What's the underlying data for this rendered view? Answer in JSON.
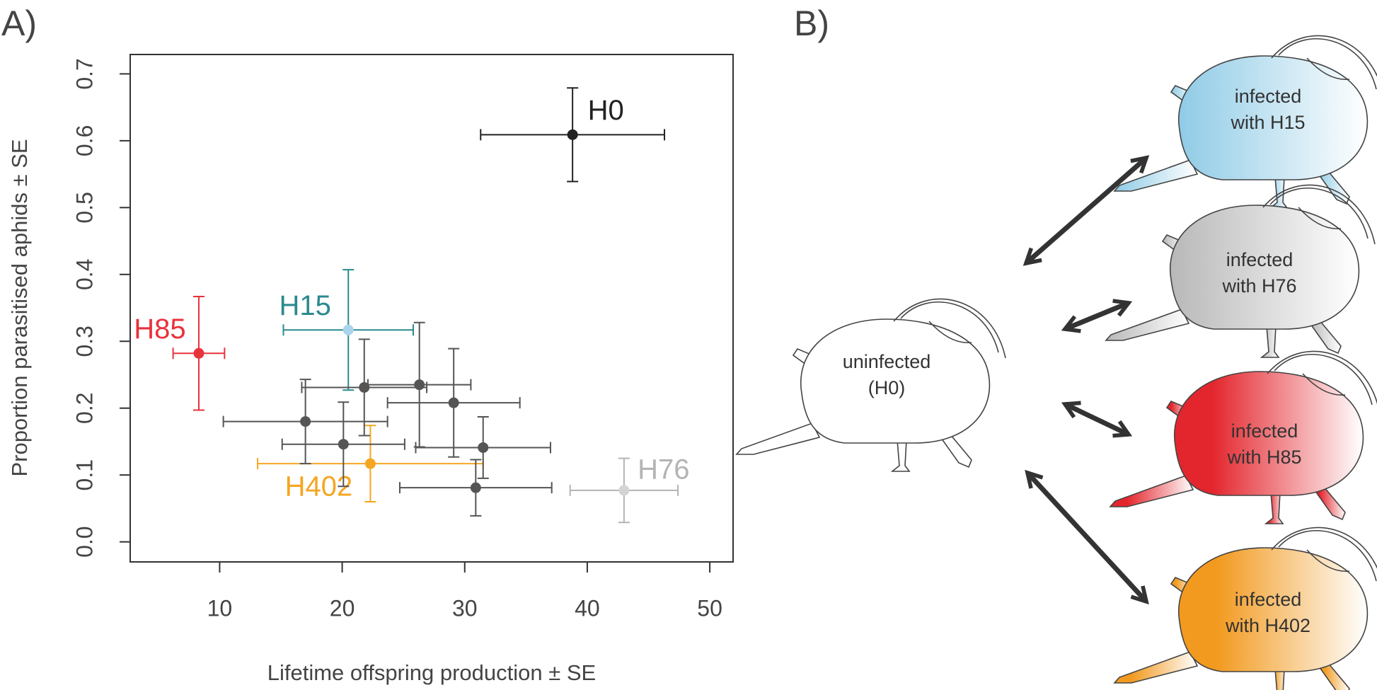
{
  "panel_labels": [
    "A)",
    "B)"
  ],
  "chart_data": {
    "type": "scatter",
    "x_label": "Lifetime offspring production ± SE",
    "y_label": "Proportion parasitised aphids ± SE",
    "xlim": [
      2.7,
      51.9
    ],
    "ylim": [
      -0.03,
      0.729
    ],
    "xticks": [
      10,
      20,
      30,
      40,
      50
    ],
    "yticks": [
      {
        "value": 0,
        "label": "0.0"
      },
      0.1,
      0.2,
      0.3,
      0.4,
      0.5,
      0.6,
      0.7
    ],
    "series": [
      {
        "label": "H0",
        "color": "#222222",
        "x": [
          38.8
        ],
        "y": [
          0.609
        ],
        "xerr": [
          7.5
        ],
        "yerr": [
          0.07
        ]
      },
      {
        "label": "H85",
        "color": "#e8323c",
        "x": [
          8.3
        ],
        "y": [
          0.282
        ],
        "xerr": [
          2.1
        ],
        "yerr": [
          0.085
        ]
      },
      {
        "label": "H15",
        "color": "#2a8a8f",
        "point_color": "#a9d4ea",
        "x": [
          20.5
        ],
        "y": [
          0.317
        ],
        "xerr": [
          5.3
        ],
        "yerr": [
          0.09
        ]
      },
      {
        "label": "H402",
        "color": "#f5a623",
        "x": [
          22.3
        ],
        "y": [
          0.117
        ],
        "xerr": [
          9.2
        ],
        "yerr": [
          0.057
        ]
      },
      {
        "label": "H76",
        "color": "#b4b4b4",
        "point_color": "#d4d4d4",
        "x": [
          43.0
        ],
        "y": [
          0.077
        ],
        "xerr": [
          4.4
        ],
        "yerr": [
          0.048
        ]
      },
      {
        "color": "#555555",
        "x": [
          17.0,
          20.1,
          21.8,
          26.3,
          29.1,
          31.5,
          30.9
        ],
        "y": [
          0.18,
          0.146,
          0.231,
          0.235,
          0.208,
          0.141,
          0.081
        ],
        "xerr": [
          6.7,
          5.0,
          5.1,
          4.2,
          5.4,
          5.5,
          6.2
        ],
        "yerr": [
          0.063,
          0.063,
          0.072,
          0.093,
          0.081,
          0.046,
          0.042
        ]
      }
    ]
  },
  "diagram": {
    "nodes": [
      {
        "lines": [
          "uninfected",
          "(H0)"
        ]
      },
      {
        "lines": [
          "infected",
          "with H15"
        ]
      },
      {
        "lines": [
          "infected",
          "with H76"
        ]
      },
      {
        "lines": [
          "infected",
          "with H85"
        ]
      },
      {
        "lines": [
          "infected",
          "with H402"
        ]
      }
    ]
  }
}
